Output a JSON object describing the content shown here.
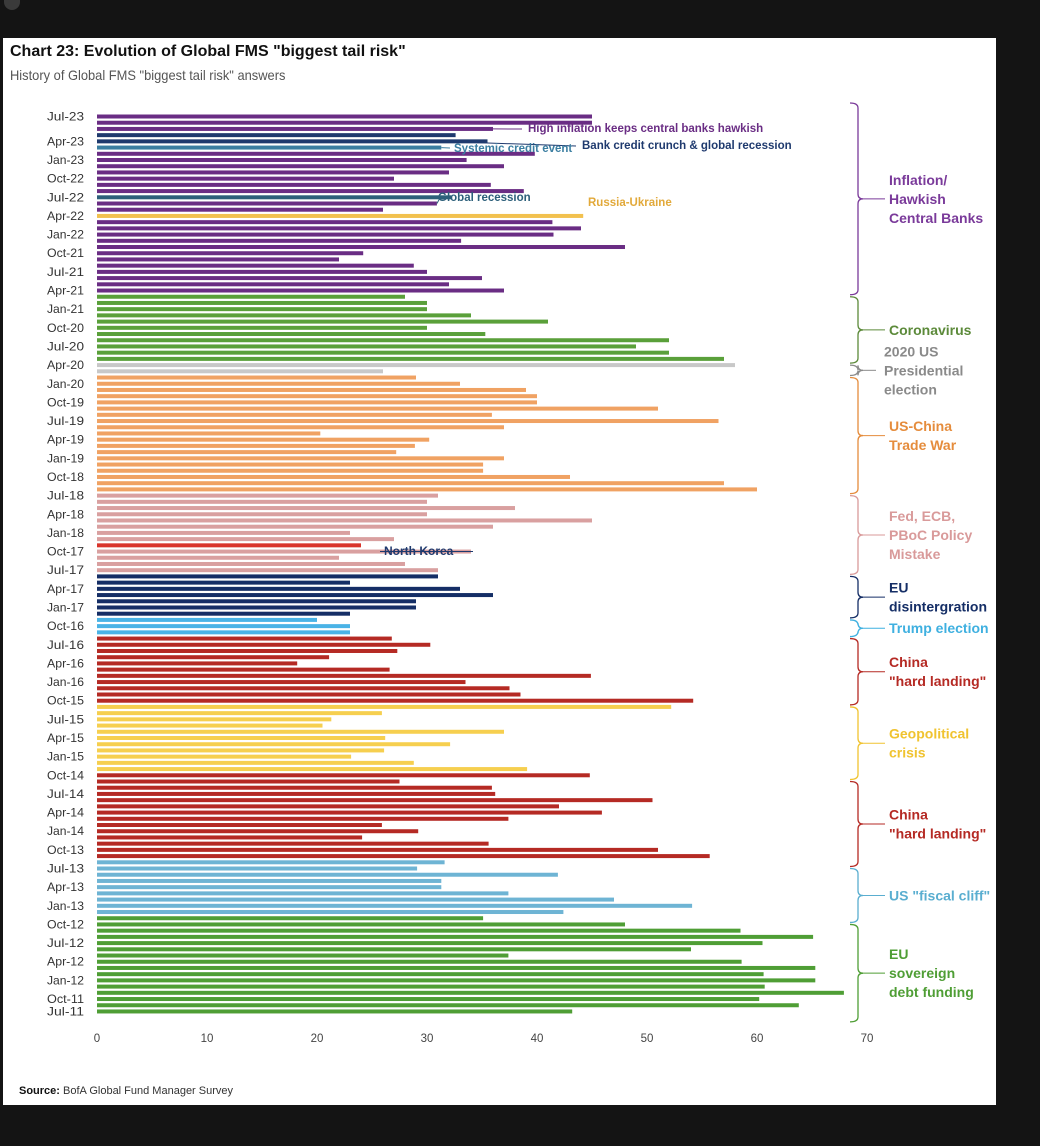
{
  "title": "Chart 23: Evolution of Global FMS \"biggest tail risk\"",
  "subtitle": "History of Global FMS \"biggest tail risk\" answers",
  "source_label": "Source:",
  "source_text": "BofA Global Fund Manager Survey",
  "chart_data": {
    "type": "bar",
    "orientation": "horizontal",
    "title": "Chart 23: Evolution of Global FMS \"biggest tail risk\"",
    "xlabel": "",
    "ylabel": "",
    "xlim": [
      0,
      70
    ],
    "x_ticks": [
      0,
      10,
      20,
      30,
      40,
      50,
      60,
      70
    ],
    "y_tick_labels": [
      "Jul-23",
      "Apr-23",
      "Jan-23",
      "Oct-22",
      "Jul-22",
      "Apr-22",
      "Jan-22",
      "Oct-21",
      "Jul-21",
      "Apr-21",
      "Jan-21",
      "Oct-20",
      "Jul-20",
      "Apr-20",
      "Jan-20",
      "Oct-19",
      "Jul-19",
      "Apr-19",
      "Jan-19",
      "Oct-18",
      "Jul-18",
      "Apr-18",
      "Jan-18",
      "Oct-17",
      "Jul-17",
      "Apr-17",
      "Jan-17",
      "Oct-16",
      "Jul-16",
      "Apr-16",
      "Jan-16",
      "Oct-15",
      "Jul-15",
      "Apr-15",
      "Jan-15",
      "Oct-14",
      "Jul-14",
      "Apr-14",
      "Jan-14",
      "Oct-13",
      "Jul-13",
      "Apr-13",
      "Jan-13",
      "Oct-12",
      "Jul-12",
      "Apr-12",
      "Jan-12",
      "Oct-11",
      "Jul-11"
    ],
    "colors": {
      "inflation": "#6a2d84",
      "credit": "#1f3a6e",
      "systemic": "#3b7ea1",
      "recession": "#2c5f7a",
      "russia": "#f2c14e",
      "coronavirus": "#5aa03a",
      "us_election_2020": "#c8c8c8",
      "trade_war": "#f0a263",
      "policy_mistake": "#d9a0a0",
      "north_korea": "#d9342b",
      "eu_disintegration": "#152e66",
      "trump": "#4ab3e6",
      "china_2016": "#b52a24",
      "geopolitical": "#f6cf4f",
      "china_2014": "#b52a24",
      "fiscal_cliff": "#6eb4d4",
      "eu_sovereign": "#4f9e35",
      "bracket_inflation": "#7a3a9a",
      "bracket_trump": "#3fb0e0",
      "bracket_geopolitical": "#f0c330",
      "bracket_fiscal": "#5aaed0"
    },
    "bars": [
      {
        "label": "Jul-23",
        "value": 45,
        "group": "inflation"
      },
      {
        "label": "",
        "value": 45,
        "group": "inflation"
      },
      {
        "label": "",
        "value": 36,
        "group": "inflation"
      },
      {
        "label": "",
        "value": 32.6,
        "group": "credit"
      },
      {
        "label": "Apr-23",
        "value": 35.5,
        "group": "credit"
      },
      {
        "label": "",
        "value": 31.3,
        "group": "systemic"
      },
      {
        "label": "",
        "value": 39.8,
        "group": "inflation"
      },
      {
        "label": "Jan-23",
        "value": 33.6,
        "group": "inflation"
      },
      {
        "label": "",
        "value": 37,
        "group": "inflation"
      },
      {
        "label": "",
        "value": 32,
        "group": "inflation"
      },
      {
        "label": "Oct-22",
        "value": 27,
        "group": "inflation"
      },
      {
        "label": "",
        "value": 35.8,
        "group": "inflation"
      },
      {
        "label": "",
        "value": 38.8,
        "group": "inflation"
      },
      {
        "label": "Jul-22",
        "value": 32.2,
        "group": "recession"
      },
      {
        "label": "",
        "value": 30.9,
        "group": "inflation"
      },
      {
        "label": "",
        "value": 26,
        "group": "inflation"
      },
      {
        "label": "Apr-22",
        "value": 44.2,
        "group": "russia"
      },
      {
        "label": "",
        "value": 41.4,
        "group": "inflation"
      },
      {
        "label": "",
        "value": 44,
        "group": "inflation"
      },
      {
        "label": "Jan-22",
        "value": 41.5,
        "group": "inflation"
      },
      {
        "label": "",
        "value": 33.1,
        "group": "inflation"
      },
      {
        "label": "",
        "value": 48,
        "group": "inflation"
      },
      {
        "label": "Oct-21",
        "value": 24.2,
        "group": "inflation"
      },
      {
        "label": "",
        "value": 22,
        "group": "inflation"
      },
      {
        "label": "",
        "value": 28.8,
        "group": "inflation"
      },
      {
        "label": "Jul-21",
        "value": 30,
        "group": "inflation"
      },
      {
        "label": "",
        "value": 35,
        "group": "inflation"
      },
      {
        "label": "",
        "value": 32,
        "group": "inflation"
      },
      {
        "label": "Apr-21",
        "value": 37,
        "group": "inflation"
      },
      {
        "label": "",
        "value": 28,
        "group": "coronavirus"
      },
      {
        "label": "",
        "value": 30,
        "group": "coronavirus"
      },
      {
        "label": "Jan-21",
        "value": 30,
        "group": "coronavirus"
      },
      {
        "label": "",
        "value": 34,
        "group": "coronavirus"
      },
      {
        "label": "",
        "value": 41,
        "group": "coronavirus"
      },
      {
        "label": "Oct-20",
        "value": 30,
        "group": "coronavirus"
      },
      {
        "label": "",
        "value": 35.3,
        "group": "coronavirus"
      },
      {
        "label": "",
        "value": 52,
        "group": "coronavirus"
      },
      {
        "label": "Jul-20",
        "value": 49,
        "group": "coronavirus"
      },
      {
        "label": "",
        "value": 52,
        "group": "coronavirus"
      },
      {
        "label": "",
        "value": 57,
        "group": "coronavirus"
      },
      {
        "label": "Apr-20",
        "value": 58,
        "group": "us_election_2020"
      },
      {
        "label": "",
        "value": 26,
        "group": "us_election_2020"
      },
      {
        "label": "",
        "value": 29,
        "group": "trade_war"
      },
      {
        "label": "Jan-20",
        "value": 33,
        "group": "trade_war"
      },
      {
        "label": "",
        "value": 39,
        "group": "trade_war"
      },
      {
        "label": "",
        "value": 40,
        "group": "trade_war"
      },
      {
        "label": "Oct-19",
        "value": 40,
        "group": "trade_war"
      },
      {
        "label": "",
        "value": 51,
        "group": "trade_war"
      },
      {
        "label": "",
        "value": 35.9,
        "group": "trade_war"
      },
      {
        "label": "Jul-19",
        "value": 56.5,
        "group": "trade_war"
      },
      {
        "label": "",
        "value": 37,
        "group": "trade_war"
      },
      {
        "label": "",
        "value": 20.3,
        "group": "trade_war"
      },
      {
        "label": "Apr-19",
        "value": 30.2,
        "group": "trade_war"
      },
      {
        "label": "",
        "value": 28.9,
        "group": "trade_war"
      },
      {
        "label": "",
        "value": 27.2,
        "group": "trade_war"
      },
      {
        "label": "Jan-19",
        "value": 37,
        "group": "trade_war"
      },
      {
        "label": "",
        "value": 35.1,
        "group": "trade_war"
      },
      {
        "label": "",
        "value": 35.1,
        "group": "trade_war"
      },
      {
        "label": "Oct-18",
        "value": 43,
        "group": "trade_war"
      },
      {
        "label": "",
        "value": 57,
        "group": "trade_war"
      },
      {
        "label": "",
        "value": 60,
        "group": "trade_war"
      },
      {
        "label": "Jul-18",
        "value": 31,
        "group": "policy_mistake"
      },
      {
        "label": "",
        "value": 30,
        "group": "policy_mistake"
      },
      {
        "label": "",
        "value": 38,
        "group": "policy_mistake"
      },
      {
        "label": "Apr-18",
        "value": 30,
        "group": "policy_mistake"
      },
      {
        "label": "",
        "value": 45,
        "group": "policy_mistake"
      },
      {
        "label": "",
        "value": 36,
        "group": "policy_mistake"
      },
      {
        "label": "Jan-18",
        "value": 23,
        "group": "policy_mistake"
      },
      {
        "label": "",
        "value": 27,
        "group": "policy_mistake"
      },
      {
        "label": "",
        "value": 24,
        "group": "north_korea"
      },
      {
        "label": "Oct-17",
        "value": 34,
        "group": "policy_mistake"
      },
      {
        "label": "",
        "value": 22,
        "group": "policy_mistake"
      },
      {
        "label": "",
        "value": 28,
        "group": "policy_mistake"
      },
      {
        "label": "Jul-17",
        "value": 31,
        "group": "policy_mistake"
      },
      {
        "label": "",
        "value": 31,
        "group": "eu_disintegration"
      },
      {
        "label": "",
        "value": 23,
        "group": "eu_disintegration"
      },
      {
        "label": "Apr-17",
        "value": 33,
        "group": "eu_disintegration"
      },
      {
        "label": "",
        "value": 36,
        "group": "eu_disintegration"
      },
      {
        "label": "",
        "value": 29,
        "group": "eu_disintegration"
      },
      {
        "label": "Jan-17",
        "value": 29,
        "group": "eu_disintegration"
      },
      {
        "label": "",
        "value": 23,
        "group": "eu_disintegration"
      },
      {
        "label": "",
        "value": 20,
        "group": "trump"
      },
      {
        "label": "Oct-16",
        "value": 23,
        "group": "trump"
      },
      {
        "label": "",
        "value": 23,
        "group": "trump"
      },
      {
        "label": "",
        "value": 26.8,
        "group": "china_2016"
      },
      {
        "label": "Jul-16",
        "value": 30.3,
        "group": "china_2016"
      },
      {
        "label": "",
        "value": 27.3,
        "group": "china_2016"
      },
      {
        "label": "",
        "value": 21.1,
        "group": "china_2016"
      },
      {
        "label": "Apr-16",
        "value": 18.2,
        "group": "china_2016"
      },
      {
        "label": "",
        "value": 26.6,
        "group": "china_2016"
      },
      {
        "label": "",
        "value": 44.9,
        "group": "china_2016"
      },
      {
        "label": "Jan-16",
        "value": 33.5,
        "group": "china_2016"
      },
      {
        "label": "",
        "value": 37.5,
        "group": "china_2016"
      },
      {
        "label": "",
        "value": 38.5,
        "group": "china_2016"
      },
      {
        "label": "Oct-15",
        "value": 54.2,
        "group": "china_2016"
      },
      {
        "label": "",
        "value": 52.2,
        "group": "geopolitical"
      },
      {
        "label": "",
        "value": 25.9,
        "group": "geopolitical"
      },
      {
        "label": "Jul-15",
        "value": 21.3,
        "group": "geopolitical"
      },
      {
        "label": "",
        "value": 20.5,
        "group": "geopolitical"
      },
      {
        "label": "",
        "value": 37,
        "group": "geopolitical"
      },
      {
        "label": "Apr-15",
        "value": 26.2,
        "group": "geopolitical"
      },
      {
        "label": "",
        "value": 32.1,
        "group": "geopolitical"
      },
      {
        "label": "",
        "value": 26.1,
        "group": "geopolitical"
      },
      {
        "label": "Jan-15",
        "value": 23.1,
        "group": "geopolitical"
      },
      {
        "label": "",
        "value": 28.8,
        "group": "geopolitical"
      },
      {
        "label": "",
        "value": 39.1,
        "group": "geopolitical"
      },
      {
        "label": "Oct-14",
        "value": 44.8,
        "group": "china_2014"
      },
      {
        "label": "",
        "value": 27.5,
        "group": "china_2014"
      },
      {
        "label": "",
        "value": 35.9,
        "group": "china_2014"
      },
      {
        "label": "Jul-14",
        "value": 36.2,
        "group": "china_2014"
      },
      {
        "label": "",
        "value": 50.5,
        "group": "china_2014"
      },
      {
        "label": "",
        "value": 42,
        "group": "china_2014"
      },
      {
        "label": "Apr-14",
        "value": 45.9,
        "group": "china_2014"
      },
      {
        "label": "",
        "value": 37.4,
        "group": "china_2014"
      },
      {
        "label": "",
        "value": 25.9,
        "group": "china_2014"
      },
      {
        "label": "Jan-14",
        "value": 29.2,
        "group": "china_2014"
      },
      {
        "label": "",
        "value": 24.1,
        "group": "china_2014"
      },
      {
        "label": "",
        "value": 35.6,
        "group": "china_2014"
      },
      {
        "label": "Oct-13",
        "value": 51,
        "group": "china_2014"
      },
      {
        "label": "",
        "value": 55.7,
        "group": "china_2014"
      },
      {
        "label": "",
        "value": 31.6,
        "group": "fiscal_cliff"
      },
      {
        "label": "Jul-13",
        "value": 29.1,
        "group": "fiscal_cliff"
      },
      {
        "label": "",
        "value": 41.9,
        "group": "fiscal_cliff"
      },
      {
        "label": "",
        "value": 31.3,
        "group": "fiscal_cliff"
      },
      {
        "label": "Apr-13",
        "value": 31.3,
        "group": "fiscal_cliff"
      },
      {
        "label": "",
        "value": 37.4,
        "group": "fiscal_cliff"
      },
      {
        "label": "",
        "value": 47,
        "group": "fiscal_cliff"
      },
      {
        "label": "Jan-13",
        "value": 54.1,
        "group": "fiscal_cliff"
      },
      {
        "label": "",
        "value": 42.4,
        "group": "fiscal_cliff"
      },
      {
        "label": "",
        "value": 35.1,
        "group": "eu_sovereign"
      },
      {
        "label": "Oct-12",
        "value": 48,
        "group": "eu_sovereign"
      },
      {
        "label": "",
        "value": 58.5,
        "group": "eu_sovereign"
      },
      {
        "label": "",
        "value": 65.1,
        "group": "eu_sovereign"
      },
      {
        "label": "Jul-12",
        "value": 60.5,
        "group": "eu_sovereign"
      },
      {
        "label": "",
        "value": 54,
        "group": "eu_sovereign"
      },
      {
        "label": "",
        "value": 37.4,
        "group": "eu_sovereign"
      },
      {
        "label": "Apr-12",
        "value": 58.6,
        "group": "eu_sovereign"
      },
      {
        "label": "",
        "value": 65.3,
        "group": "eu_sovereign"
      },
      {
        "label": "",
        "value": 60.6,
        "group": "eu_sovereign"
      },
      {
        "label": "Jan-12",
        "value": 65.3,
        "group": "eu_sovereign"
      },
      {
        "label": "",
        "value": 60.7,
        "group": "eu_sovereign"
      },
      {
        "label": "",
        "value": 67.9,
        "group": "eu_sovereign"
      },
      {
        "label": "Oct-11",
        "value": 60.2,
        "group": "eu_sovereign"
      },
      {
        "label": "",
        "value": 63.8,
        "group": "eu_sovereign"
      },
      {
        "label": "Jul-11",
        "value": 43.2,
        "group": "eu_sovereign"
      }
    ],
    "annotations": [
      {
        "text": "High inflation keeps central banks hawkish",
        "bar": 2,
        "color": "#6a2d84"
      },
      {
        "text": "Bank credit crunch & global recession",
        "bar": 5,
        "color": "#1f3a6e"
      },
      {
        "text": "Systemic credit event",
        "bar": 6,
        "color": "#3b7ea1"
      },
      {
        "text": "Global recession",
        "bar": 14,
        "color": "#2c5f7a"
      },
      {
        "text": "Russia-Ukraine",
        "bar": 16,
        "color": "#e2a93a"
      },
      {
        "text": "North Korea",
        "bar": 70,
        "color": "#1f3a6e"
      }
    ],
    "legend_groups": [
      {
        "lines": [
          "Inflation/",
          "Hawkish",
          "Central Banks"
        ],
        "color": "#7a3a9a",
        "from": 0,
        "to": 29
      },
      {
        "lines": [
          "Coronavirus"
        ],
        "color": "#5c8a3a",
        "from": 29,
        "to": 40
      },
      {
        "lines": [
          "2020 US",
          "Presidential",
          "election"
        ],
        "color": "#8a8a8a",
        "from": 40,
        "to": 42
      },
      {
        "lines": [
          "US-China",
          "Trade War"
        ],
        "color": "#e58c3c",
        "from": 42,
        "to": 61
      },
      {
        "lines": [
          "Fed, ECB,",
          "PBoC Policy",
          "Mistake"
        ],
        "color": "#d99a9a",
        "from": 61,
        "to": 74
      },
      {
        "lines": [
          "EU",
          "disintergration"
        ],
        "color": "#152e66",
        "from": 74,
        "to": 81
      },
      {
        "lines": [
          "Trump election"
        ],
        "color": "#3fb0e0",
        "from": 81,
        "to": 84
      },
      {
        "lines": [
          "China",
          "\"hard landing\""
        ],
        "color": "#b52a24",
        "from": 84,
        "to": 95
      },
      {
        "lines": [
          "Geopolitical",
          "crisis"
        ],
        "color": "#f0c330",
        "from": 95,
        "to": 107
      },
      {
        "lines": [
          "China",
          "\"hard landing\""
        ],
        "color": "#b52a24",
        "from": 107,
        "to": 121
      },
      {
        "lines": [
          "US \"fiscal cliff\""
        ],
        "color": "#5aaed0",
        "from": 121,
        "to": 130
      },
      {
        "lines": [
          "EU",
          "sovereign",
          "debt funding"
        ],
        "color": "#4f9e35",
        "from": 130,
        "to": 146
      }
    ]
  }
}
